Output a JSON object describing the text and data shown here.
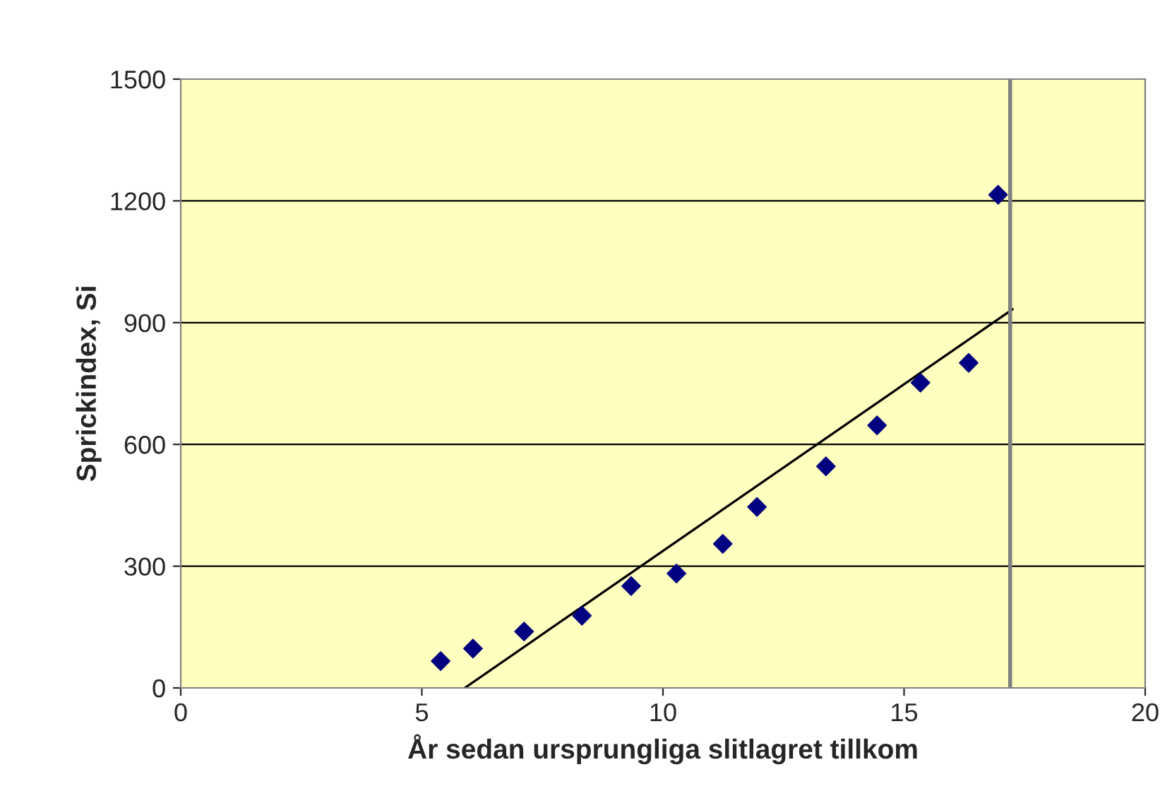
{
  "chart_data": {
    "type": "scatter",
    "xlabel": "År sedan ursprungliga slitlagret tillkom",
    "ylabel": "Sprickindex, Si",
    "xlim": [
      0,
      20
    ],
    "ylim": [
      0,
      1500
    ],
    "xticks": [
      0,
      5,
      10,
      15,
      20
    ],
    "yticks": [
      0,
      300,
      600,
      900,
      1200,
      1500
    ],
    "grid": "y",
    "series": [
      {
        "marker": "diamond",
        "color": "#000080",
        "x": [
          5.39,
          6.06,
          7.12,
          8.32,
          9.34,
          10.28,
          11.24,
          11.95,
          13.38,
          14.44,
          15.34,
          16.34,
          16.95
        ],
        "values": [
          66,
          97,
          139,
          178,
          251,
          282,
          355,
          446,
          546,
          647,
          752,
          801,
          1215
        ]
      },
      {
        "type": "line",
        "color": "#000000",
        "x": [
          5.89,
          17.25
        ],
        "values": [
          0,
          933
        ]
      }
    ],
    "ref_lines": [
      {
        "axis": "x",
        "value": 17.2,
        "color": "#808080"
      }
    ]
  }
}
